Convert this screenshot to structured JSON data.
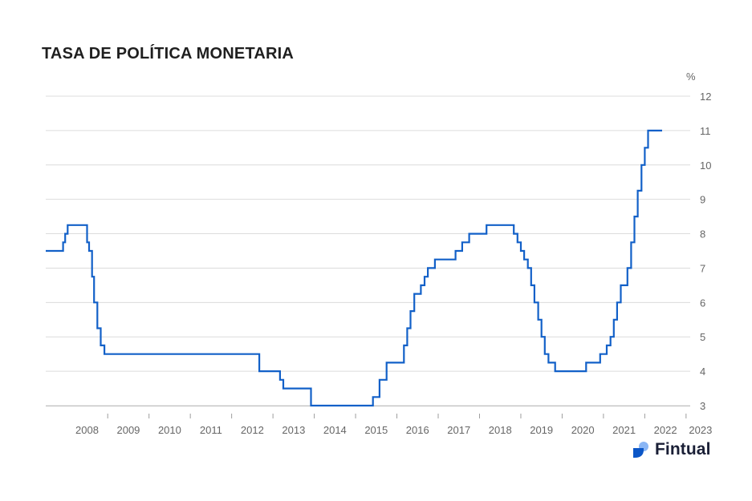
{
  "title": "TASA DE POLÍTICA MONETARIA",
  "brand": {
    "name": "Fintual",
    "colors": {
      "dark": "#0b56c7",
      "light": "#8ab6f5"
    }
  },
  "chart_data": {
    "type": "line",
    "step": true,
    "title": "TASA DE POLÍTICA MONETARIA",
    "ylabel": "%",
    "ylim": [
      3,
      12
    ],
    "yticks": [
      3,
      4,
      5,
      6,
      7,
      8,
      9,
      10,
      11,
      12
    ],
    "xlim": [
      2007.5,
      2023.1
    ],
    "xticks": [
      "2008",
      "2009",
      "2010",
      "2011",
      "2012",
      "2013",
      "2014",
      "2015",
      "2016",
      "2017",
      "2018",
      "2019",
      "2020",
      "2021",
      "2022",
      "2023"
    ],
    "grid": true,
    "line_color": "#1260c8",
    "series": [
      {
        "x": [
          2007.5,
          2007.92,
          2007.97,
          2008.03,
          2008.5,
          2008.55,
          2008.62,
          2008.67,
          2008.75,
          2008.83,
          2008.92,
          2009.0,
          2012.67,
          2013.17,
          2013.25,
          2013.33,
          2013.92,
          2015.42,
          2015.58,
          2015.75,
          2016.17,
          2016.25,
          2016.33,
          2016.42,
          2016.58,
          2016.67,
          2016.75,
          2016.83,
          2016.92,
          2017.42,
          2017.58,
          2017.75,
          2018.17,
          2018.25,
          2018.83,
          2018.92,
          2019.0,
          2019.08,
          2019.17,
          2019.25,
          2019.33,
          2019.42,
          2019.5,
          2019.58,
          2019.67,
          2019.75,
          2019.83,
          2019.92,
          2020.58,
          2020.92,
          2021.08,
          2021.17,
          2021.25,
          2021.33,
          2021.42,
          2021.58,
          2021.67,
          2021.75,
          2021.83,
          2021.92,
          2022.0,
          2022.08,
          2022.15,
          2022.2,
          2022.25,
          2022.31,
          2022.37,
          2022.42
        ],
        "y": [
          7.5,
          7.75,
          8.0,
          8.25,
          7.75,
          7.5,
          6.75,
          6.0,
          5.25,
          4.75,
          4.5,
          4.5,
          4.0,
          3.75,
          3.5,
          3.5,
          3.0,
          3.25,
          3.75,
          4.25,
          4.75,
          5.25,
          5.75,
          6.25,
          6.5,
          6.75,
          7.0,
          7.0,
          7.25,
          7.5,
          7.75,
          8.0,
          8.25,
          8.25,
          8.0,
          7.75,
          7.5,
          7.25,
          7.0,
          6.5,
          6.0,
          5.5,
          5.0,
          4.5,
          4.25,
          4.25,
          4.0,
          4.0,
          4.25,
          4.5,
          4.75,
          5.0,
          5.5,
          6.0,
          6.5,
          7.0,
          7.75,
          8.5,
          9.25,
          10.0,
          10.5,
          11.0,
          11.0,
          11.0,
          11.0,
          11.0,
          11.0,
          11.0
        ]
      }
    ]
  }
}
